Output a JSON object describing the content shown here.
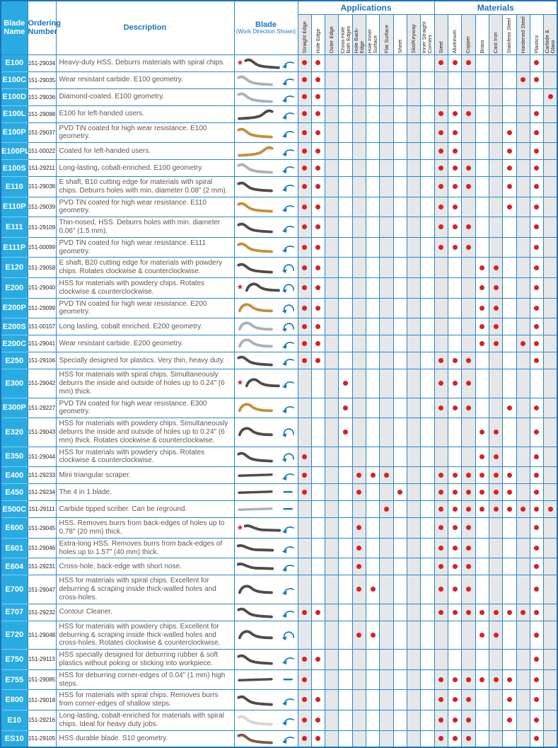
{
  "colors": {
    "grid_blue": "#2e86c8",
    "header_text_blue": "#1b75bc",
    "name_cell_blue": "#29abe2",
    "dot_red": "#d1232a",
    "column_shade_gray": "#e6e7e8",
    "blade_dark": "#4d4d4f",
    "blade_silver": "#aeb1b4",
    "blade_gold": "#c2913c",
    "blade_light": "#d4d6d8",
    "blade_brown": "#7d5a3c",
    "arrow_blue": "#1b75bc"
  },
  "header": {
    "blade_name": "Blade\nName",
    "ordering_number": "Ordering\nNumber",
    "description": "Description",
    "blade_title": "Blade",
    "blade_subtitle": "(Work Direction Shown)",
    "applications_label": "Applications",
    "materials_label": "Materials",
    "application_columns": [
      "Straight Edge",
      "Hole Edge",
      "Outer Edge",
      "Cross-Hole Both Edges",
      "Hole Back-Edge",
      "Hole Inner Surface",
      "Flat Surface",
      "Sheet",
      "Slot/Keyway",
      "Inner Straight Corners"
    ],
    "material_columns": [
      "Steel",
      "Aluminum",
      "Copper",
      "Brass",
      "Cast Iron",
      "Stainless Steel",
      "Hardened Steel",
      "Plastics",
      "Carbide & Glass"
    ]
  },
  "icons": {
    "star": "★"
  },
  "rows": [
    {
      "name": "E100",
      "order": "151-29034",
      "desc": "Heavy-duty HSS. Deburrs materials with spiral chips.",
      "star": true,
      "blade": {
        "shape": "s",
        "color": "dark",
        "mirror": false
      },
      "arrow": "hook",
      "apps": [
        1,
        2
      ],
      "mats": [
        1,
        2,
        3,
        8
      ]
    },
    {
      "name": "E100C",
      "order": "151-29035",
      "desc": "Wear resistant carbide. E100 geometry.",
      "star": false,
      "blade": {
        "shape": "s",
        "color": "silver",
        "mirror": false
      },
      "arrow": "hook",
      "apps": [
        1,
        2
      ],
      "mats": [
        7,
        8
      ]
    },
    {
      "name": "E100D",
      "order": "151-29036",
      "desc": "Diamond-coated. E100 geometry.",
      "star": false,
      "blade": {
        "shape": "s",
        "color": "silver",
        "mirror": false
      },
      "arrow": "hook",
      "apps": [
        1,
        2
      ],
      "mats": [
        9
      ]
    },
    {
      "name": "E100L",
      "order": "151-29098",
      "desc": "E100 for left-handed users.",
      "star": false,
      "blade": {
        "shape": "s",
        "color": "dark",
        "mirror": true
      },
      "arrow": "hook",
      "apps": [
        1,
        2
      ],
      "mats": [
        1,
        2,
        3,
        8
      ]
    },
    {
      "name": "E100P",
      "order": "151-29037",
      "desc": "PVD TiN coated for high wear resistance. E100 geometry.",
      "star": false,
      "blade": {
        "shape": "s",
        "color": "gold",
        "mirror": false
      },
      "arrow": "hook",
      "apps": [
        1,
        2
      ],
      "mats": [
        1,
        2,
        6,
        8
      ]
    },
    {
      "name": "E100PL",
      "order": "151-00022",
      "desc": "Coated for left-handed users.",
      "star": false,
      "blade": {
        "shape": "s",
        "color": "gold",
        "mirror": true
      },
      "arrow": "hook",
      "apps": [
        1,
        2
      ],
      "mats": [
        1,
        2,
        6,
        8
      ]
    },
    {
      "name": "E100S",
      "order": "151-29211",
      "desc": "Long-lasting, cobalt-enriched. E100 geometry.",
      "star": false,
      "blade": {
        "shape": "s",
        "color": "silver",
        "mirror": false
      },
      "arrow": "hook",
      "apps": [
        1,
        2
      ],
      "mats": [
        1,
        2,
        3,
        6,
        8
      ]
    },
    {
      "name": "E110",
      "order": "151-29038",
      "desc": "E shaft, B10 cutting edge for materials with spiral chips. Deburrs holes with min. diameter 0.08\" (2 mm).",
      "star": false,
      "blade": {
        "shape": "s",
        "color": "dark",
        "mirror": false
      },
      "arrow": "hook",
      "apps": [
        1,
        2
      ],
      "mats": [
        1,
        2,
        3,
        6,
        8
      ]
    },
    {
      "name": "E110P",
      "order": "151-29039",
      "desc": "PVD TiN coated for high wear resistance. E110 geometry.",
      "star": false,
      "blade": {
        "shape": "s",
        "color": "gold",
        "mirror": false
      },
      "arrow": "hook",
      "apps": [
        1,
        2
      ],
      "mats": [
        1,
        2,
        6,
        8
      ]
    },
    {
      "name": "E111",
      "order": "151-29109",
      "desc": "Thin-nosed, HSS. Deburrs holes with min. diameter 0.06\" (1.5 mm).",
      "star": false,
      "blade": {
        "shape": "s",
        "color": "dark",
        "mirror": false
      },
      "arrow": "hook",
      "apps": [
        1,
        2
      ],
      "mats": [
        1,
        2,
        3,
        8
      ]
    },
    {
      "name": "E111P",
      "order": "151-00099",
      "desc": "PVD TiN coated for high wear resistance. E111 geometry.",
      "star": false,
      "blade": {
        "shape": "s",
        "color": "gold",
        "mirror": false
      },
      "arrow": "hook",
      "apps": [
        1,
        2
      ],
      "mats": [
        1,
        2,
        3,
        8
      ]
    },
    {
      "name": "E120",
      "order": "151-29058",
      "desc": "E shaft, B20 cutting edge for materials with powdery chips. Rotates clockwise & counterclockwise.",
      "star": false,
      "blade": {
        "shape": "s",
        "color": "dark",
        "mirror": false
      },
      "arrow": "round",
      "apps": [
        1,
        2
      ],
      "mats": [
        4,
        5,
        8
      ]
    },
    {
      "name": "E200",
      "order": "151-29040",
      "desc": "HSS for materials with powdery chips. Rotates clockwise & counterclockwise.",
      "star": true,
      "blade": {
        "shape": "hump",
        "color": "dark",
        "mirror": false
      },
      "arrow": "round",
      "apps": [
        1,
        2
      ],
      "mats": [
        4,
        5,
        8
      ]
    },
    {
      "name": "E200P",
      "order": "151-29099",
      "desc": "PVD TiN coated for high wear resistance. E200 geometry.",
      "star": false,
      "blade": {
        "shape": "hump",
        "color": "gold",
        "mirror": false
      },
      "arrow": "round",
      "apps": [
        1,
        2
      ],
      "mats": [
        4,
        5,
        8
      ]
    },
    {
      "name": "E200S",
      "order": "151-00107",
      "desc": "Long lasting, cobalt enriched. E200 geometry.",
      "star": false,
      "blade": {
        "shape": "hump",
        "color": "silver",
        "mirror": false
      },
      "arrow": "round",
      "apps": [
        1,
        2
      ],
      "mats": [
        4,
        5,
        8
      ]
    },
    {
      "name": "E200C",
      "order": "151-29041",
      "desc": "Wear resistant carbide. E200 geometry.",
      "star": false,
      "blade": {
        "shape": "hump",
        "color": "silver",
        "mirror": false
      },
      "arrow": "hook",
      "apps": [
        1,
        2
      ],
      "mats": [
        4,
        5,
        7,
        8
      ]
    },
    {
      "name": "E250",
      "order": "151-29106",
      "desc": "Specially designed for plastics. Very thin, heavy duty.",
      "star": false,
      "blade": {
        "shape": "s",
        "color": "dark",
        "mirror": false
      },
      "arrow": "hook",
      "apps": [
        1,
        2
      ],
      "mats": [
        1,
        2,
        3,
        8
      ]
    },
    {
      "name": "E300",
      "order": "151-29042",
      "desc": "HSS for materials with spiral chips. Simultaneously deburrs the inside and outside of holes up to 0.24\" (6 mm) thick.",
      "star": true,
      "blade": {
        "shape": "hump",
        "color": "dark",
        "mirror": false
      },
      "arrow": "hook",
      "apps": [
        4
      ],
      "mats": [
        1,
        2,
        3
      ]
    },
    {
      "name": "E300P",
      "order": "151-29227",
      "desc": "PVD TiN coated for high wear resistance. E300 geometry.",
      "star": false,
      "blade": {
        "shape": "hump",
        "color": "gold",
        "mirror": false
      },
      "arrow": "hook",
      "apps": [
        4
      ],
      "mats": [
        1,
        2,
        3,
        6,
        8
      ]
    },
    {
      "name": "E320",
      "order": "151-29043",
      "desc": "HSS for materials with powdery chips. Simultaneously deburrs the inside and outside of holes up to 0.24\" (6 mm) thick. Rotates clockwise & counterclockwise.",
      "star": false,
      "blade": {
        "shape": "hump",
        "color": "dark",
        "mirror": false
      },
      "arrow": "round",
      "apps": [
        4
      ],
      "mats": [
        4,
        5,
        8
      ]
    },
    {
      "name": "E350",
      "order": "151-29044",
      "desc": "HSS for materials with powdery chips. Rotates clockwise & counterclockwise.",
      "star": false,
      "blade": {
        "shape": "s",
        "color": "dark",
        "mirror": false
      },
      "arrow": "round",
      "apps": [
        1
      ],
      "mats": [
        4,
        5,
        8
      ]
    },
    {
      "name": "E400",
      "order": "151-29233",
      "desc": "Mini triangular scraper.",
      "star": false,
      "blade": {
        "shape": "straight",
        "color": "dark",
        "mirror": false
      },
      "arrow": "hook",
      "apps": [
        1,
        5,
        6,
        7
      ],
      "mats": [
        1,
        2,
        3,
        4,
        5,
        6,
        8
      ]
    },
    {
      "name": "E450",
      "order": "151-29234",
      "desc": "The 4 in 1 blade.",
      "star": false,
      "blade": {
        "shape": "straight",
        "color": "dark",
        "mirror": false
      },
      "arrow": "line",
      "apps": [
        1,
        5,
        8
      ],
      "mats": [
        1,
        2,
        3,
        4,
        5,
        6,
        8
      ]
    },
    {
      "name": "E500C",
      "order": "151-29111",
      "desc": "Carbide tipped scriber. Can be reground.",
      "star": false,
      "blade": {
        "shape": "straight",
        "color": "silver",
        "mirror": false
      },
      "arrow": "line",
      "apps": [
        7
      ],
      "mats": [
        1,
        2,
        3,
        4,
        5,
        6,
        7,
        8,
        9
      ]
    },
    {
      "name": "E600",
      "order": "151-29045",
      "desc": "HSS. Removes burrs from back-edges of holes up to 0.78\" (20 mm) thick.",
      "star": true,
      "blade": {
        "shape": "long",
        "color": "dark",
        "mirror": false
      },
      "arrow": "hook",
      "apps": [
        5
      ],
      "mats": [
        1,
        2,
        3,
        8
      ]
    },
    {
      "name": "E601",
      "order": "151-29046",
      "desc": "Extra-long HSS. Removes burrs from back-edges of holes up to 1.57\" (40 mm) thick.",
      "star": false,
      "blade": {
        "shape": "long",
        "color": "dark",
        "mirror": false
      },
      "arrow": "hook",
      "apps": [
        5
      ],
      "mats": [
        1,
        2,
        3,
        8
      ]
    },
    {
      "name": "E604",
      "order": "151-29231",
      "desc": "Cross-hole, back-edge with short nose.",
      "star": false,
      "blade": {
        "shape": "long",
        "color": "dark",
        "mirror": false
      },
      "arrow": "hook",
      "apps": [
        5
      ],
      "mats": [
        1,
        2,
        3,
        8
      ]
    },
    {
      "name": "E700",
      "order": "151-29047",
      "desc": "HSS for materials with spiral chips. Excellent for deburring & scraping inside thick-walled holes and cross-holes.",
      "star": false,
      "blade": {
        "shape": "hump",
        "color": "dark",
        "mirror": false
      },
      "arrow": "hook",
      "apps": [
        5,
        6
      ],
      "mats": [
        1,
        2,
        3,
        8
      ]
    },
    {
      "name": "E707",
      "order": "151-29232",
      "desc": "Contour Cleaner.",
      "star": false,
      "blade": {
        "shape": "s",
        "color": "dark",
        "mirror": false
      },
      "arrow": "hook",
      "apps": [
        1,
        2
      ],
      "mats": [
        1,
        2,
        3,
        4,
        5,
        6,
        7,
        8
      ]
    },
    {
      "name": "E720",
      "order": "151-29048",
      "desc": "HSS for materials with powdery chips. Excellent for deburring & scraping inside thick-walled holes and cross-holes. Rotates clockwise & counterclockwise.",
      "star": false,
      "blade": {
        "shape": "hump",
        "color": "dark",
        "mirror": false
      },
      "arrow": "round",
      "apps": [
        5,
        6
      ],
      "mats": [
        4,
        5,
        8
      ]
    },
    {
      "name": "E750",
      "order": "151-29113",
      "desc": "HSS specially designed for deburring rubber & soft plastics without poking or sticking into workpiece.",
      "star": false,
      "blade": {
        "shape": "s",
        "color": "dark",
        "mirror": false
      },
      "arrow": "hook",
      "apps": [
        1,
        2
      ],
      "mats": [
        8
      ]
    },
    {
      "name": "E755",
      "order": "151-29085",
      "desc": "HSS for deburring corner-edges of 0.04\" (1 mm) high steps.",
      "star": false,
      "blade": {
        "shape": "straight",
        "color": "dark",
        "mirror": false
      },
      "arrow": "line",
      "apps": [
        1
      ],
      "mats": [
        1,
        2,
        3,
        4,
        5,
        6,
        8
      ]
    },
    {
      "name": "E800",
      "order": "151-29018",
      "desc": "HSS for materials with spiral chips. Removes burrs from corner-edges of shallow steps.",
      "star": false,
      "blade": {
        "shape": "s",
        "color": "dark",
        "mirror": false
      },
      "arrow": "hook",
      "apps": [
        1,
        2
      ],
      "mats": [
        1,
        2,
        3,
        6,
        8
      ]
    },
    {
      "name": "E10",
      "order": "151-29216",
      "desc": "Long-lasting, cobalt-enriched for materials with spiral chips. Ideal for heavy duty jobs.",
      "star": false,
      "blade": {
        "shape": "s",
        "color": "light",
        "mirror": false
      },
      "arrow": "hook",
      "apps": [
        1,
        2
      ],
      "mats": [
        1,
        2,
        3,
        6,
        8
      ]
    },
    {
      "name": "ES10",
      "order": "151-29105",
      "desc": "HSS durable blade. S10 geometry.",
      "star": false,
      "blade": {
        "shape": "s",
        "color": "brown",
        "mirror": false
      },
      "arrow": "hook",
      "apps": [
        1,
        2
      ],
      "mats": [
        1,
        2,
        3,
        8
      ]
    }
  ]
}
